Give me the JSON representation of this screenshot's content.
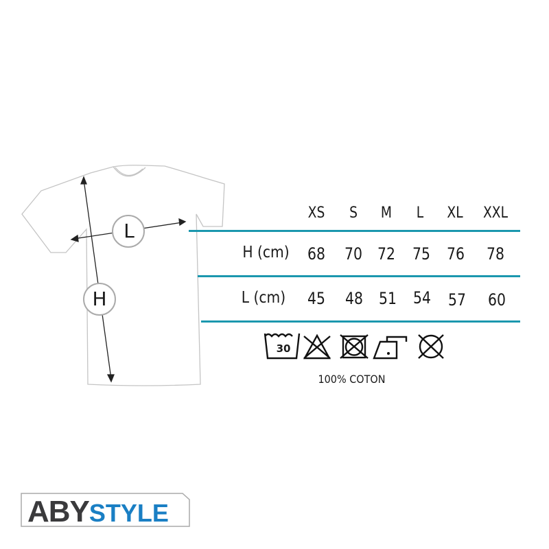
{
  "size_chart": {
    "sizes": [
      "XS",
      "S",
      "M",
      "L",
      "XL",
      "XXL"
    ],
    "rows": [
      {
        "label": "H (cm)",
        "values": [
          "68",
          "70",
          "72",
          "75",
          "76",
          "78"
        ]
      },
      {
        "label": "L (cm)",
        "values": [
          "45",
          "48",
          "51",
          "54",
          "57",
          "60"
        ]
      }
    ],
    "line_color": "#1b97ae"
  },
  "diagram": {
    "length_label": "L",
    "height_label": "H"
  },
  "care": {
    "icons": [
      "wash-30-icon",
      "no-bleach-icon",
      "no-tumble-dry-icon",
      "iron-low-icon",
      "no-dry-clean-icon"
    ],
    "wash_temp": "30",
    "material": "100% COTON"
  },
  "brand": {
    "part1": "ABY",
    "part2": "STYLE",
    "colors": {
      "part1": "#3a3a3c",
      "part2": "#1a7fc4"
    }
  }
}
